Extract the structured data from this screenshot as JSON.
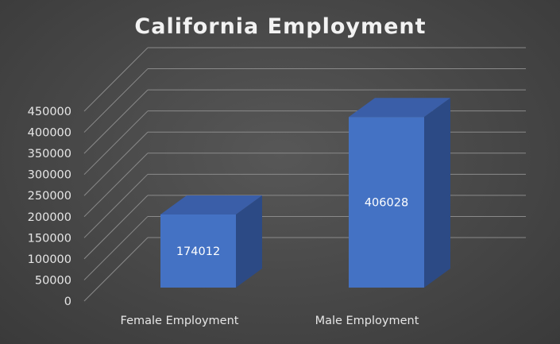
{
  "chart_data": {
    "type": "bar",
    "title": "California Employment",
    "categories": [
      "Female Employment",
      "Male Employment"
    ],
    "values": [
      174012,
      406028
    ],
    "data_labels": [
      "174012",
      "406028"
    ],
    "y_ticks": [
      "0",
      "50000",
      "100000",
      "150000",
      "200000",
      "250000",
      "300000",
      "350000",
      "400000",
      "450000"
    ],
    "ylim": [
      0,
      450000
    ],
    "grid": true,
    "style": "3d-column",
    "colors": {
      "bar": "#4472c4",
      "background": "#474747",
      "gridline": "#8a8a8a",
      "text": "#e6e6e6"
    }
  }
}
